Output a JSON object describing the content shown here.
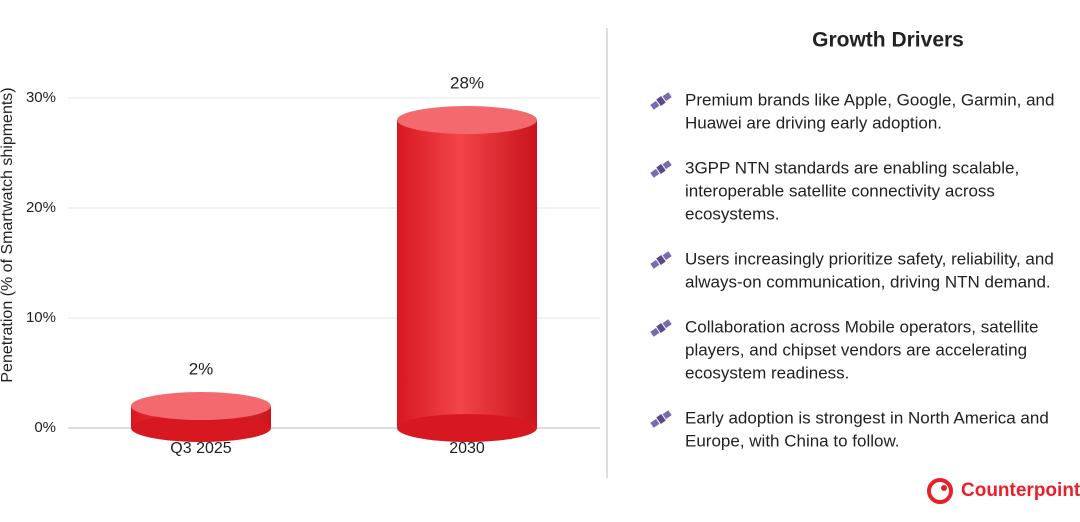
{
  "chart_data": {
    "type": "cylinder",
    "y_label": "Penetration (% of Smartwatch shipments)",
    "categories": [
      "Q3 2025",
      "2030"
    ],
    "values": [
      2,
      28
    ],
    "value_labels": [
      "2%",
      "28%"
    ],
    "color": "#e8202a",
    "ylim": [
      0,
      35
    ],
    "yticks": [
      {
        "value": 0,
        "label": "0%"
      },
      {
        "value": 10,
        "label": "10%"
      },
      {
        "value": 20,
        "label": "20%"
      },
      {
        "value": 30,
        "label": "30%"
      }
    ],
    "grid": true
  },
  "panel": {
    "title": "Growth Drivers",
    "drivers": [
      [
        "Premium brands like Apple, Google, Garmin, and",
        "Huawei are driving early adoption."
      ],
      [
        "3GPP NTN standards are enabling scalable,",
        "interoperable satellite connectivity across",
        "ecosystems."
      ],
      [
        "Users increasingly prioritize safety, reliability, and",
        "always-on communication, driving NTN demand."
      ],
      [
        "Collaboration across Mobile operators, satellite",
        "players, and chipset vendors are accelerating",
        "ecosystem readiness."
      ],
      [
        "Early adoption is strongest in North America and",
        "Europe, with China to follow."
      ]
    ],
    "brand": "Counterpoint"
  }
}
